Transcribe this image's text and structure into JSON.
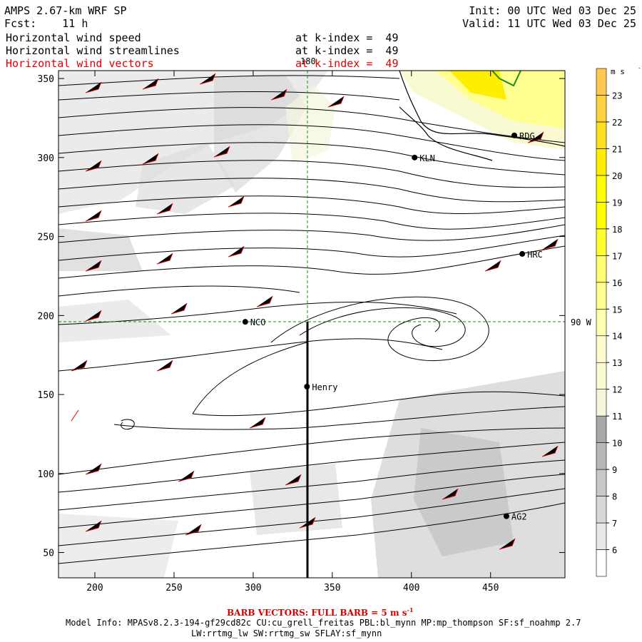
{
  "header": {
    "model": "AMPS 2.67-km WRF SP",
    "fcst_label": "Fcst:",
    "fcst_value": "11 h",
    "init": "Init: 00 UTC Wed 03 Dec 25",
    "valid": "Valid: 11 UTC Wed 03 Dec 25"
  },
  "fields": [
    {
      "name": "Horizontal wind speed",
      "level": "at k-index =  49",
      "color": "#000000"
    },
    {
      "name": "Horizontal wind streamlines",
      "level": "at k-index =  49",
      "color": "#000000"
    },
    {
      "name": "Horizontal wind vectors",
      "level": "at k-index =  49",
      "color": "#e00000"
    }
  ],
  "axes": {
    "x_ticks": [
      "200",
      "250",
      "300",
      "350",
      "400",
      "450"
    ],
    "y_ticks": [
      "350",
      "300",
      "250",
      "200",
      "150",
      "100",
      "50"
    ],
    "xlim": [
      177,
      497
    ],
    "ylim": [
      34,
      355
    ]
  },
  "grid_labels": {
    "meridian": "180",
    "parallel": "90 W"
  },
  "stations": [
    {
      "id": "KLN",
      "x": 402,
      "y": 300
    },
    {
      "id": "RDG",
      "x": 465,
      "y": 314
    },
    {
      "id": "HRC",
      "x": 470,
      "y": 239
    },
    {
      "id": "NCO",
      "x": 295,
      "y": 196
    },
    {
      "id": "Henry",
      "x": 334,
      "y": 155
    },
    {
      "id": "AG2",
      "x": 460,
      "y": 73
    }
  ],
  "colorbar": {
    "unit_label": "m s",
    "unit_exp": "-1",
    "levels": [
      "6",
      "7",
      "8",
      "9",
      "10",
      "11",
      "12",
      "13",
      "14",
      "15",
      "16",
      "17",
      "18",
      "19",
      "20",
      "21",
      "22",
      "23"
    ],
    "colors": [
      "#ffffff",
      "#e8e8e8",
      "#d8d8d8",
      "#c8c8c8",
      "#b8b8b8",
      "#a8a8a8",
      "#f5f5dc",
      "#fafad2",
      "#fffacd",
      "#ffffb0",
      "#ffff90",
      "#ffff70",
      "#ffff30",
      "#ffff00",
      "#ffff00",
      "#ffee00",
      "#ffe020",
      "#ffd040",
      "#ffc850"
    ]
  },
  "footer": {
    "barb_title": "BARB VECTORS:  FULL BARB = 5 m s",
    "barb_exp": "-1",
    "model_info": "Model Info: MPASv8.2.3-194-gf29cd82c CU:cu_grell_freitas PBL:bl_mynn MP:mp_thompson SF:sf_noahmp 2.7",
    "model_info2": "LW:rrtmg_lw SW:rrtmg_sw SFLAY:sf_mynn"
  }
}
